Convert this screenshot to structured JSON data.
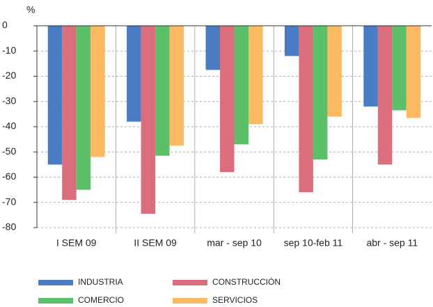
{
  "chart_data": {
    "type": "bar",
    "y_unit": "%",
    "categories": [
      "I SEM 09",
      "II SEM 09",
      "mar - sep 10",
      "sep 10-feb 11",
      "abr - sep 11"
    ],
    "series": [
      {
        "name": "INDUSTRIA",
        "color": "#4a7cc4",
        "values": [
          -55,
          -38,
          -17.5,
          -12,
          -32
        ]
      },
      {
        "name": "CONSTRUCCIÓN",
        "color": "#db6e7c",
        "values": [
          -69,
          -74.5,
          -58,
          -66,
          -55
        ]
      },
      {
        "name": "COMERCIO",
        "color": "#5cbf6a",
        "values": [
          -65,
          -51.5,
          -47,
          -53,
          -33.5
        ]
      },
      {
        "name": "SERVICIOS",
        "color": "#fbb961",
        "values": [
          -52,
          -47.5,
          -39,
          -36,
          -36.5
        ]
      }
    ],
    "ylim": [
      -80,
      0
    ],
    "yticks": [
      0,
      -10,
      -20,
      -30,
      -40,
      -50,
      -60,
      -70,
      -80
    ],
    "grid": true
  }
}
